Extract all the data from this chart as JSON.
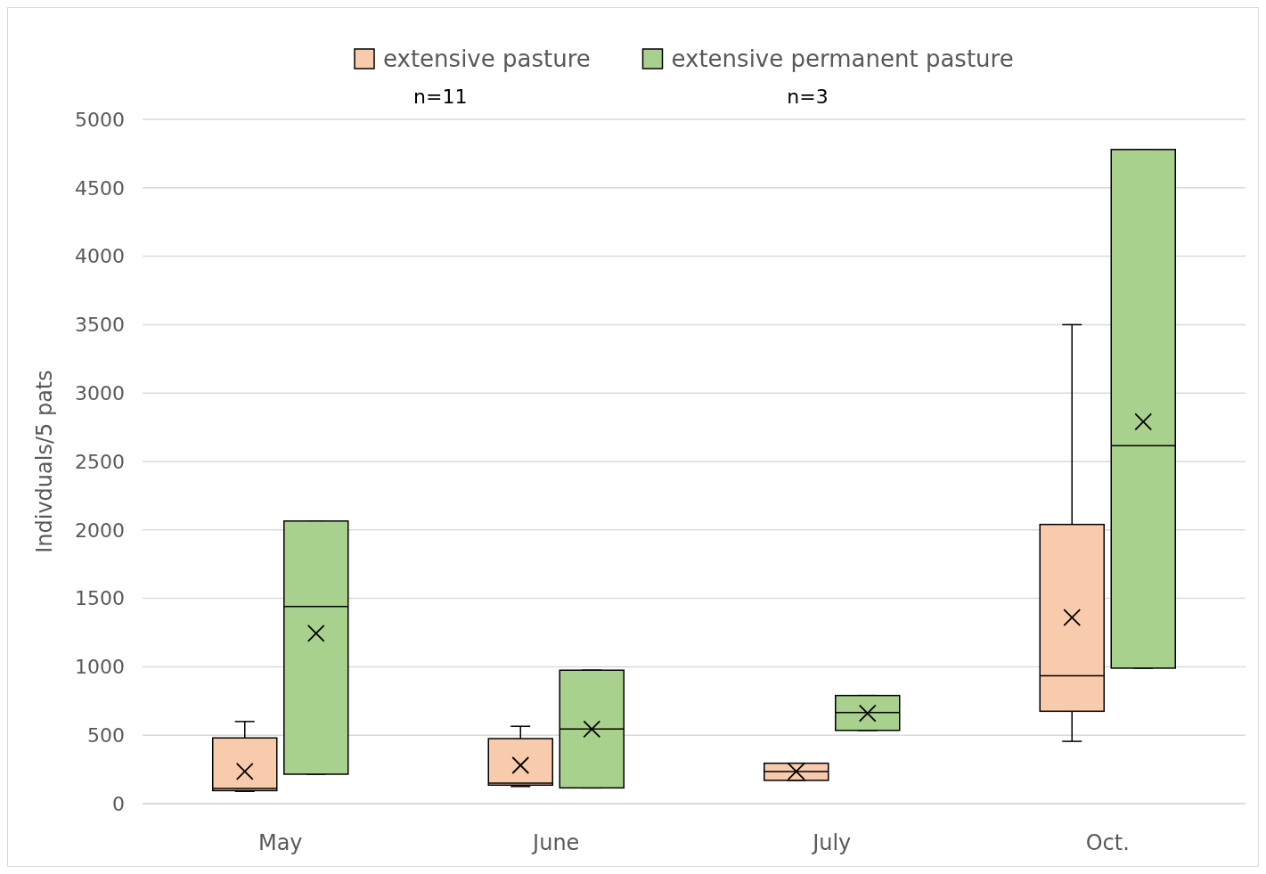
{
  "chart_data": {
    "type": "box",
    "ylabel": "Indivduals/5 pats",
    "categories": [
      "May",
      "June",
      "July",
      "Oct."
    ],
    "ylim": [
      0,
      5000
    ],
    "yticks": [
      0,
      500,
      1000,
      1500,
      2000,
      2500,
      3000,
      3500,
      4000,
      4500,
      5000
    ],
    "grid": "y",
    "legend": "top",
    "annotations": [
      "n=11",
      "n=3"
    ],
    "series": [
      {
        "name": "extensive pasture",
        "color": "#f8cbad",
        "boxes": [
          {
            "low": 90,
            "q1": 95,
            "median": 110,
            "q3": 480,
            "high": 600,
            "mean": 235
          },
          {
            "low": 125,
            "q1": 135,
            "median": 150,
            "q3": 475,
            "high": 565,
            "mean": 280
          },
          {
            "low": 170,
            "q1": 170,
            "median": 235,
            "q3": 295,
            "high": 295,
            "mean": 235
          },
          {
            "low": 455,
            "q1": 675,
            "median": 935,
            "q3": 2040,
            "high": 3500,
            "mean": 1360
          }
        ]
      },
      {
        "name": "extensive permanent pasture",
        "color": "#a9d18e",
        "boxes": [
          {
            "low": 215,
            "q1": 215,
            "median": 1440,
            "q3": 2065,
            "high": 2065,
            "mean": 1245
          },
          {
            "low": 115,
            "q1": 115,
            "median": 545,
            "q3": 975,
            "high": 975,
            "mean": 545
          },
          {
            "low": 535,
            "q1": 535,
            "median": 665,
            "q3": 790,
            "high": 790,
            "mean": 660
          },
          {
            "low": 990,
            "q1": 990,
            "median": 2615,
            "q3": 4780,
            "high": 4780,
            "mean": 2790
          }
        ]
      }
    ]
  }
}
